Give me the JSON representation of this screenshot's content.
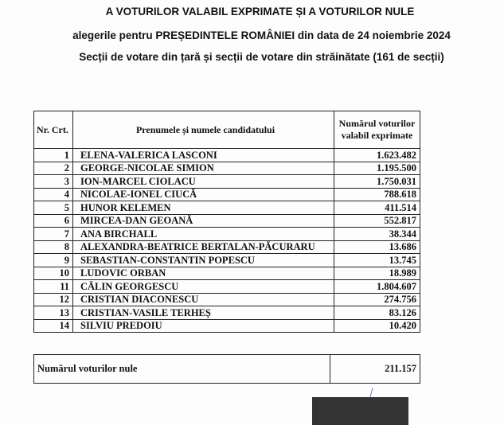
{
  "header": {
    "line1": "A VOTURILOR VALABIL EXPRIMATE ȘI A VOTURILOR NULE",
    "line2": "alegerile pentru PREȘEDINTELE ROMÂNIEI din data de 24 noiembrie 2024",
    "line3": "Secții de votare din țară și secții de votare din străinătate (161 de secții)"
  },
  "table": {
    "col_nr": "Nr. Crt.",
    "col_name": "Prenumele și numele candidatului",
    "col_votes": "Numărul voturilor valabil exprimate",
    "rows": [
      {
        "nr": "1",
        "name": "ELENA-VALERICA LASCONI",
        "votes": "1.623.482"
      },
      {
        "nr": "2",
        "name": "GEORGE-NICOLAE SIMION",
        "votes": "1.195.500"
      },
      {
        "nr": "3",
        "name": "ION-MARCEL CIOLACU",
        "votes": "1.750.031"
      },
      {
        "nr": "4",
        "name": "NICOLAE-IONEL CIUCĂ",
        "votes": "788.618"
      },
      {
        "nr": "5",
        "name": "HUNOR KELEMEN",
        "votes": "411.514"
      },
      {
        "nr": "6",
        "name": "MIRCEA-DAN GEOANĂ",
        "votes": "552.817"
      },
      {
        "nr": "7",
        "name": "ANA BIRCHALL",
        "votes": "38.344"
      },
      {
        "nr": "8",
        "name": "ALEXANDRA-BEATRICE BERTALAN-PĂCURARU",
        "votes": "13.686"
      },
      {
        "nr": "9",
        "name": "SEBASTIAN-CONSTANTIN POPESCU",
        "votes": "13.745"
      },
      {
        "nr": "10",
        "name": "LUDOVIC ORBAN",
        "votes": "18.989"
      },
      {
        "nr": "11",
        "name": "CĂLIN GEORGESCU",
        "votes": "1.804.607"
      },
      {
        "nr": "12",
        "name": "CRISTIAN DIACONESCU",
        "votes": "274.756"
      },
      {
        "nr": "13",
        "name": "CRISTIAN-VASILE TERHEȘ",
        "votes": "83.126"
      },
      {
        "nr": "14",
        "name": "SILVIU PREDOIU",
        "votes": "10.420"
      }
    ]
  },
  "null_votes": {
    "label": "Numărul voturilor nule",
    "value": "211.157"
  }
}
